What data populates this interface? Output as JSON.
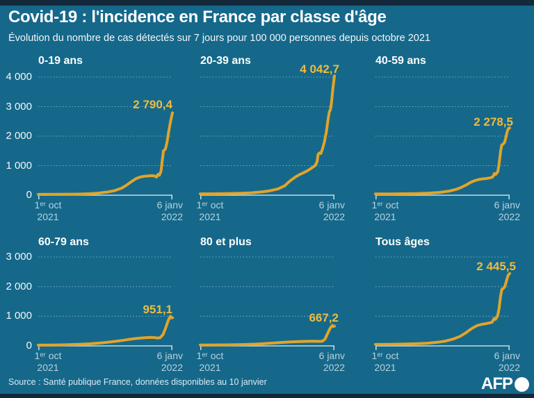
{
  "header": {
    "title": "Covid-19 : l'incidence en France par classe d'âge",
    "subtitle": "Évolution du nombre de cas détectés sur 7 jours pour 100 000 personnes depuis octobre 2021"
  },
  "axis": {
    "start_line1": "1ᵉʳ oct",
    "start_line2": "2021",
    "end_line1": "6 janv",
    "end_line2": "2022"
  },
  "footer": {
    "source": "Source : Santé publique France, données disponibles au 10 janvier",
    "logo_text": "AFP"
  },
  "colors": {
    "background": "#15688A",
    "band": "#13293B",
    "line": "#E1A42B",
    "value_label": "#EFBB3F",
    "grid": "#8FB8CB",
    "axis_line": "#C3D9E3",
    "y_tick": "#F4F8FA",
    "x_tick": "#B9D2DE"
  },
  "chart_data": [
    {
      "type": "line",
      "title": "0-19 ans",
      "peak_label": "2 790,4",
      "peak_value": 2790.4,
      "ylim": [
        0,
        4000
      ],
      "yticks": [
        0,
        1000,
        2000,
        3000,
        4000
      ],
      "ytick_labels": [
        "0",
        "1 000",
        "2 000",
        "3 000",
        "4 000"
      ],
      "show_ytick_labels": true,
      "x_range": [
        "1er oct 2021",
        "6 janv 2022"
      ],
      "grid": "dotted",
      "points": [
        [
          0,
          25
        ],
        [
          0.06,
          28
        ],
        [
          0.12,
          30
        ],
        [
          0.2,
          32
        ],
        [
          0.28,
          36
        ],
        [
          0.34,
          42
        ],
        [
          0.4,
          55
        ],
        [
          0.46,
          78
        ],
        [
          0.52,
          110
        ],
        [
          0.57,
          155
        ],
        [
          0.62,
          235
        ],
        [
          0.66,
          345
        ],
        [
          0.7,
          475
        ],
        [
          0.73,
          565
        ],
        [
          0.76,
          615
        ],
        [
          0.79,
          640
        ],
        [
          0.82,
          655
        ],
        [
          0.85,
          660
        ],
        [
          0.87,
          645
        ],
        [
          0.882,
          612
        ],
        [
          0.893,
          705
        ],
        [
          0.903,
          675
        ],
        [
          0.915,
          820
        ],
        [
          0.925,
          1200
        ],
        [
          0.933,
          1500
        ],
        [
          0.947,
          1560
        ],
        [
          0.958,
          1750
        ],
        [
          0.972,
          2150
        ],
        [
          0.986,
          2500
        ],
        [
          1,
          2790.4
        ]
      ]
    },
    {
      "type": "line",
      "title": "20-39 ans",
      "peak_label": "4 042,7",
      "peak_value": 4042.7,
      "ylim": [
        0,
        4000
      ],
      "yticks": [
        0,
        1000,
        2000,
        3000,
        4000
      ],
      "ytick_labels": [
        "0",
        "1 000",
        "2 000",
        "3 000",
        "4 000"
      ],
      "show_ytick_labels": false,
      "x_range": [
        "1er oct 2021",
        "6 janv 2022"
      ],
      "grid": "dotted",
      "points": [
        [
          0,
          45
        ],
        [
          0.1,
          48
        ],
        [
          0.2,
          55
        ],
        [
          0.3,
          65
        ],
        [
          0.38,
          80
        ],
        [
          0.46,
          110
        ],
        [
          0.52,
          150
        ],
        [
          0.58,
          215
        ],
        [
          0.63,
          320
        ],
        [
          0.66,
          450
        ],
        [
          0.68,
          520
        ],
        [
          0.71,
          620
        ],
        [
          0.74,
          700
        ],
        [
          0.77,
          760
        ],
        [
          0.8,
          830
        ],
        [
          0.83,
          920
        ],
        [
          0.855,
          1000
        ],
        [
          0.87,
          1120
        ],
        [
          0.878,
          1380
        ],
        [
          0.888,
          1430
        ],
        [
          0.898,
          1410
        ],
        [
          0.91,
          1550
        ],
        [
          0.925,
          1800
        ],
        [
          0.94,
          2150
        ],
        [
          0.952,
          2550
        ],
        [
          0.962,
          2830
        ],
        [
          0.97,
          2890
        ],
        [
          0.978,
          3150
        ],
        [
          0.988,
          3600
        ],
        [
          1,
          4042.7
        ]
      ]
    },
    {
      "type": "line",
      "title": "40-59 ans",
      "peak_label": "2 278,5",
      "peak_value": 2278.5,
      "ylim": [
        0,
        4000
      ],
      "yticks": [
        0,
        1000,
        2000,
        3000,
        4000
      ],
      "ytick_labels": [
        "0",
        "1 000",
        "2 000",
        "3 000",
        "4 000"
      ],
      "show_ytick_labels": false,
      "x_range": [
        "1er oct 2021",
        "6 janv 2022"
      ],
      "grid": "dotted",
      "points": [
        [
          0,
          40
        ],
        [
          0.1,
          42
        ],
        [
          0.2,
          46
        ],
        [
          0.3,
          55
        ],
        [
          0.4,
          70
        ],
        [
          0.48,
          95
        ],
        [
          0.55,
          138
        ],
        [
          0.6,
          195
        ],
        [
          0.64,
          265
        ],
        [
          0.68,
          355
        ],
        [
          0.71,
          435
        ],
        [
          0.74,
          495
        ],
        [
          0.77,
          532
        ],
        [
          0.8,
          552
        ],
        [
          0.83,
          566
        ],
        [
          0.86,
          592
        ],
        [
          0.875,
          625
        ],
        [
          0.886,
          735
        ],
        [
          0.896,
          702
        ],
        [
          0.912,
          800
        ],
        [
          0.922,
          1080
        ],
        [
          0.932,
          1480
        ],
        [
          0.941,
          1700
        ],
        [
          0.952,
          1735
        ],
        [
          0.962,
          1790
        ],
        [
          0.972,
          1960
        ],
        [
          0.982,
          2160
        ],
        [
          0.992,
          2265
        ],
        [
          1,
          2278.5
        ]
      ]
    },
    {
      "type": "line",
      "title": "60-79 ans",
      "peak_label": "951,1",
      "peak_value": 951.1,
      "ylim": [
        0,
        3000
      ],
      "yticks": [
        0,
        1000,
        2000,
        3000
      ],
      "ytick_labels": [
        "0",
        "1 000",
        "2 000",
        "3 000"
      ],
      "show_ytick_labels": true,
      "x_range": [
        "1er oct 2021",
        "6 janv 2022"
      ],
      "grid": "dotted",
      "points": [
        [
          0,
          25
        ],
        [
          0.1,
          30
        ],
        [
          0.2,
          38
        ],
        [
          0.3,
          52
        ],
        [
          0.4,
          75
        ],
        [
          0.48,
          105
        ],
        [
          0.55,
          140
        ],
        [
          0.62,
          180
        ],
        [
          0.67,
          215
        ],
        [
          0.72,
          245
        ],
        [
          0.76,
          265
        ],
        [
          0.8,
          278
        ],
        [
          0.84,
          285
        ],
        [
          0.87,
          280
        ],
        [
          0.89,
          268
        ],
        [
          0.91,
          280
        ],
        [
          0.93,
          385
        ],
        [
          0.95,
          610
        ],
        [
          0.965,
          810
        ],
        [
          0.975,
          925
        ],
        [
          0.985,
          1000
        ],
        [
          0.992,
          945
        ],
        [
          1,
          951.1
        ]
      ]
    },
    {
      "type": "line",
      "title": "80 et plus",
      "peak_label": "667,2",
      "peak_value": 667.2,
      "ylim": [
        0,
        3000
      ],
      "yticks": [
        0,
        1000,
        2000,
        3000
      ],
      "ytick_labels": [
        "0",
        "1 000",
        "2 000",
        "3 000"
      ],
      "show_ytick_labels": false,
      "x_range": [
        "1er oct 2021",
        "6 janv 2022"
      ],
      "grid": "dotted",
      "points": [
        [
          0,
          30
        ],
        [
          0.1,
          32
        ],
        [
          0.2,
          36
        ],
        [
          0.3,
          44
        ],
        [
          0.4,
          58
        ],
        [
          0.48,
          78
        ],
        [
          0.55,
          100
        ],
        [
          0.62,
          120
        ],
        [
          0.67,
          133
        ],
        [
          0.72,
          143
        ],
        [
          0.76,
          150
        ],
        [
          0.8,
          155
        ],
        [
          0.84,
          158
        ],
        [
          0.87,
          155
        ],
        [
          0.89,
          152
        ],
        [
          0.91,
          158
        ],
        [
          0.93,
          230
        ],
        [
          0.95,
          430
        ],
        [
          0.965,
          570
        ],
        [
          0.975,
          645
        ],
        [
          0.985,
          688
        ],
        [
          0.992,
          655
        ],
        [
          1,
          667.2
        ]
      ]
    },
    {
      "type": "line",
      "title": "Tous âges",
      "peak_label": "2 445,5",
      "peak_value": 2445.5,
      "ylim": [
        0,
        3000
      ],
      "yticks": [
        0,
        1000,
        2000,
        3000
      ],
      "ytick_labels": [
        "0",
        "1 000",
        "2 000",
        "3 000"
      ],
      "show_ytick_labels": false,
      "x_range": [
        "1er oct 2021",
        "6 janv 2022"
      ],
      "grid": "dotted",
      "points": [
        [
          0,
          50
        ],
        [
          0.1,
          53
        ],
        [
          0.2,
          60
        ],
        [
          0.3,
          72
        ],
        [
          0.38,
          90
        ],
        [
          0.46,
          122
        ],
        [
          0.52,
          162
        ],
        [
          0.58,
          232
        ],
        [
          0.63,
          322
        ],
        [
          0.67,
          432
        ],
        [
          0.7,
          532
        ],
        [
          0.73,
          622
        ],
        [
          0.76,
          692
        ],
        [
          0.79,
          727
        ],
        [
          0.82,
          747
        ],
        [
          0.85,
          777
        ],
        [
          0.87,
          802
        ],
        [
          0.884,
          925
        ],
        [
          0.894,
          895
        ],
        [
          0.91,
          1005
        ],
        [
          0.922,
          1280
        ],
        [
          0.932,
          1680
        ],
        [
          0.942,
          1905
        ],
        [
          0.952,
          1935
        ],
        [
          0.962,
          1985
        ],
        [
          0.974,
          2160
        ],
        [
          0.987,
          2370
        ],
        [
          1,
          2445.5
        ]
      ]
    }
  ]
}
